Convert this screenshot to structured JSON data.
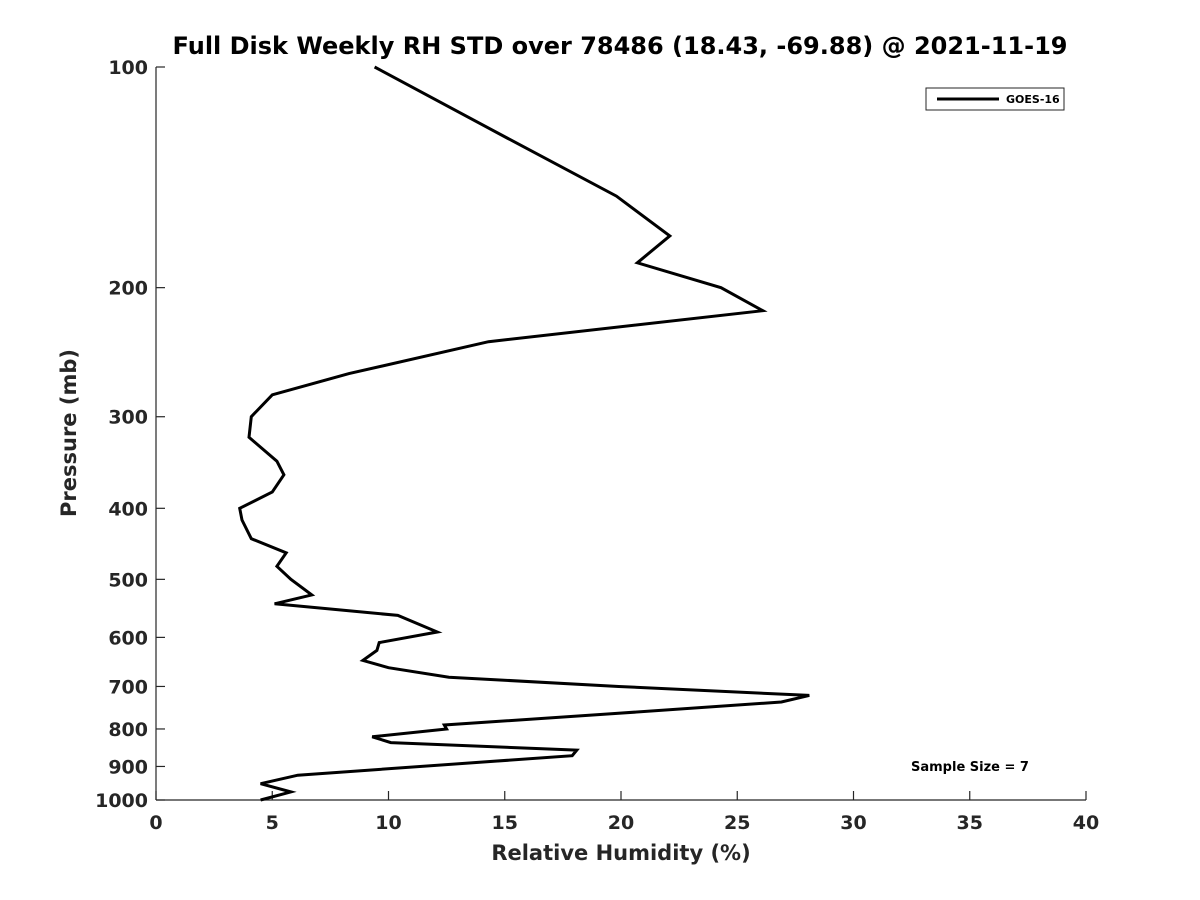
{
  "chart_data": {
    "type": "line",
    "title": "Full Disk Weekly RH STD over 78486 (18.43, -69.88) @ 2021-11-19",
    "xlabel": "Relative Humidity (%)",
    "ylabel": "Pressure (mb)",
    "xlim": [
      0,
      40
    ],
    "ylim": [
      1000,
      100
    ],
    "yscale": "log",
    "x_ticks": [
      0,
      5,
      10,
      15,
      20,
      25,
      30,
      35,
      40
    ],
    "y_ticks": [
      100,
      200,
      300,
      400,
      500,
      600,
      700,
      800,
      900,
      1000
    ],
    "grid": false,
    "legend": {
      "placement": "top-right",
      "entries": [
        "GOES-16"
      ]
    },
    "annotation": "Sample Size = 7",
    "series": [
      {
        "name": "GOES-16",
        "color": "#000000",
        "points": [
          {
            "x": 9.4,
            "y": 100
          },
          {
            "x": 15.1,
            "y": 125
          },
          {
            "x": 19.8,
            "y": 150
          },
          {
            "x": 22.1,
            "y": 170
          },
          {
            "x": 20.7,
            "y": 185
          },
          {
            "x": 24.3,
            "y": 200
          },
          {
            "x": 26.1,
            "y": 215
          },
          {
            "x": 14.3,
            "y": 237
          },
          {
            "x": 8.3,
            "y": 262
          },
          {
            "x": 5.0,
            "y": 280
          },
          {
            "x": 4.1,
            "y": 300
          },
          {
            "x": 4.0,
            "y": 320
          },
          {
            "x": 5.2,
            "y": 345
          },
          {
            "x": 5.5,
            "y": 360
          },
          {
            "x": 5.0,
            "y": 380
          },
          {
            "x": 3.6,
            "y": 400
          },
          {
            "x": 3.7,
            "y": 415
          },
          {
            "x": 4.1,
            "y": 440
          },
          {
            "x": 5.6,
            "y": 460
          },
          {
            "x": 5.2,
            "y": 480
          },
          {
            "x": 5.8,
            "y": 500
          },
          {
            "x": 6.7,
            "y": 525
          },
          {
            "x": 5.1,
            "y": 540
          },
          {
            "x": 10.4,
            "y": 560
          },
          {
            "x": 12.1,
            "y": 590
          },
          {
            "x": 9.6,
            "y": 610
          },
          {
            "x": 9.5,
            "y": 625
          },
          {
            "x": 8.9,
            "y": 645
          },
          {
            "x": 10.0,
            "y": 660
          },
          {
            "x": 12.6,
            "y": 680
          },
          {
            "x": 19.9,
            "y": 700
          },
          {
            "x": 28.1,
            "y": 720
          },
          {
            "x": 26.9,
            "y": 735
          },
          {
            "x": 19.5,
            "y": 763
          },
          {
            "x": 12.4,
            "y": 790
          },
          {
            "x": 12.5,
            "y": 800
          },
          {
            "x": 9.3,
            "y": 820
          },
          {
            "x": 10.1,
            "y": 835
          },
          {
            "x": 18.1,
            "y": 855
          },
          {
            "x": 17.9,
            "y": 870
          },
          {
            "x": 6.1,
            "y": 925
          },
          {
            "x": 4.5,
            "y": 950
          },
          {
            "x": 5.8,
            "y": 975
          },
          {
            "x": 4.5,
            "y": 1000
          }
        ]
      }
    ]
  }
}
